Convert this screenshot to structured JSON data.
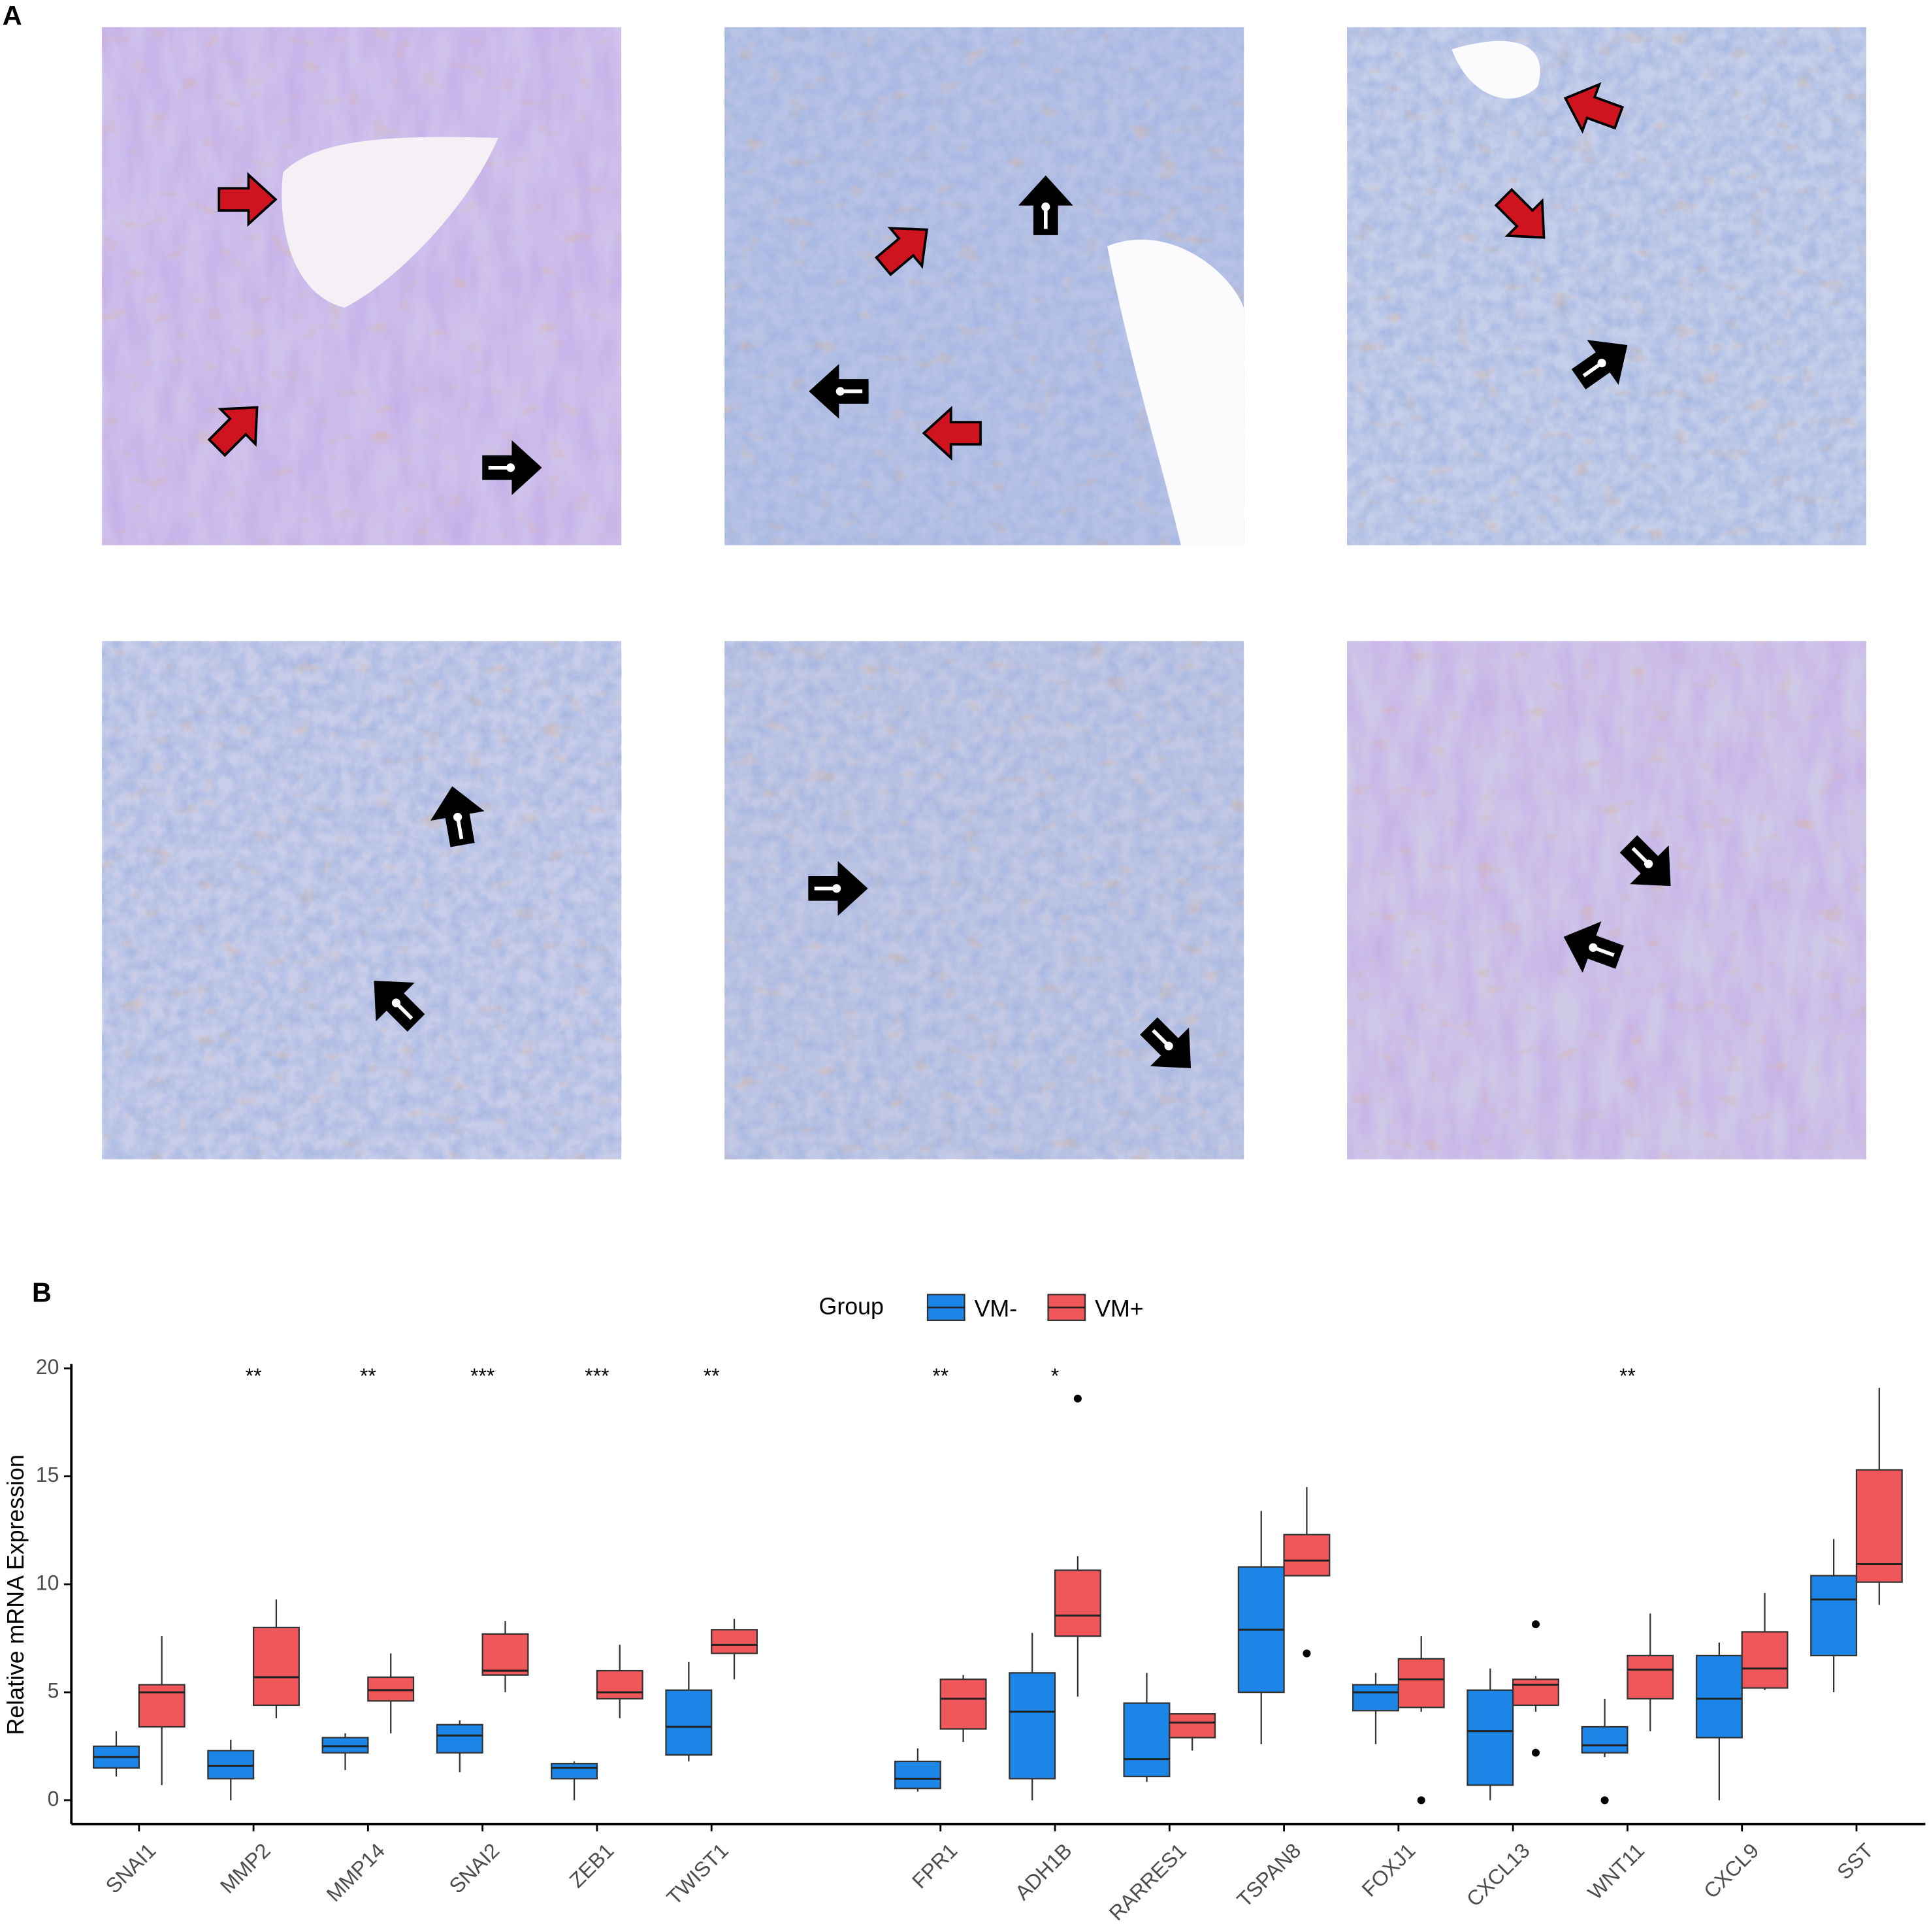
{
  "panel_labels": [
    "A",
    "B"
  ],
  "chart_data": {
    "type": "boxplot",
    "categories": [
      "SNAI1",
      "MMP2",
      "MMP14",
      "SNAI2",
      "ZEB1",
      "TWIST1",
      null,
      "FPR1",
      "ADH1B",
      "RARRES1",
      "TSPAN8",
      "FOXJ1",
      "CXCL13",
      "WNT11",
      "CXCL9",
      "SST"
    ],
    "significance": [
      null,
      "**",
      "**",
      "***",
      "***",
      "**",
      null,
      "**",
      "*",
      null,
      null,
      null,
      null,
      "**",
      null,
      null
    ],
    "y_label": "Relative mRNA Expression",
    "legend_title": "Group",
    "legend_position": "top",
    "ylim": [
      -1.1,
      20.2
    ],
    "yticks": [
      0,
      5,
      10,
      15,
      20
    ],
    "series": [
      {
        "name": "VM-",
        "color": "#1b86e8",
        "min": [
          1.1,
          0,
          1.4,
          1.3,
          0,
          1.8,
          null,
          0.4,
          0,
          0.85,
          2.6,
          2.6,
          0,
          2.0,
          0,
          5.0
        ],
        "q1": [
          1.5,
          1.0,
          2.2,
          2.2,
          1.0,
          2.1,
          null,
          0.55,
          1.0,
          1.1,
          5.0,
          4.15,
          0.7,
          2.2,
          2.9,
          6.7
        ],
        "median": [
          2.0,
          1.6,
          2.5,
          3.0,
          1.5,
          3.4,
          null,
          1.0,
          4.1,
          1.9,
          7.9,
          5.0,
          3.2,
          2.55,
          4.7,
          9.3
        ],
        "q3": [
          2.5,
          2.3,
          2.9,
          3.5,
          1.7,
          5.1,
          null,
          1.8,
          5.9,
          4.5,
          10.8,
          5.35,
          5.1,
          3.4,
          6.7,
          10.4
        ],
        "max": [
          3.2,
          2.8,
          3.1,
          3.7,
          1.8,
          6.4,
          null,
          2.4,
          7.75,
          5.9,
          13.4,
          5.9,
          6.1,
          4.7,
          7.3,
          12.1
        ],
        "outliers": [
          [],
          [],
          [],
          [],
          [],
          [],
          null,
          [],
          [],
          [],
          [],
          [],
          [],
          [
            0
          ],
          [],
          []
        ]
      },
      {
        "name": "VM+",
        "color": "#f0575a",
        "min": [
          0.7,
          3.8,
          3.1,
          5.0,
          3.8,
          5.6,
          null,
          2.7,
          4.8,
          2.3,
          10.4,
          4.1,
          4.1,
          3.2,
          5.1,
          9.05
        ],
        "q1": [
          3.4,
          4.4,
          4.6,
          5.8,
          4.7,
          6.8,
          null,
          3.3,
          7.6,
          2.9,
          10.4,
          4.3,
          4.4,
          4.7,
          5.2,
          10.1
        ],
        "median": [
          5.0,
          5.7,
          5.1,
          6.0,
          5.0,
          7.2,
          null,
          4.7,
          8.55,
          3.6,
          11.1,
          5.6,
          5.35,
          6.05,
          6.1,
          10.95
        ],
        "q3": [
          5.35,
          8.0,
          5.7,
          7.7,
          6.0,
          7.9,
          null,
          5.6,
          10.65,
          4.0,
          12.3,
          6.55,
          5.6,
          6.7,
          7.8,
          15.3
        ],
        "max": [
          7.6,
          9.3,
          6.8,
          8.3,
          7.2,
          8.4,
          null,
          5.8,
          11.3,
          4.0,
          14.5,
          7.6,
          5.75,
          8.65,
          9.6,
          19.1
        ],
        "outliers": [
          [],
          [],
          [],
          [],
          [],
          [],
          null,
          [],
          [
            18.6
          ],
          [],
          [
            6.8
          ],
          [
            0
          ],
          [
            8.15,
            2.2
          ],
          [],
          [],
          []
        ]
      }
    ]
  }
}
